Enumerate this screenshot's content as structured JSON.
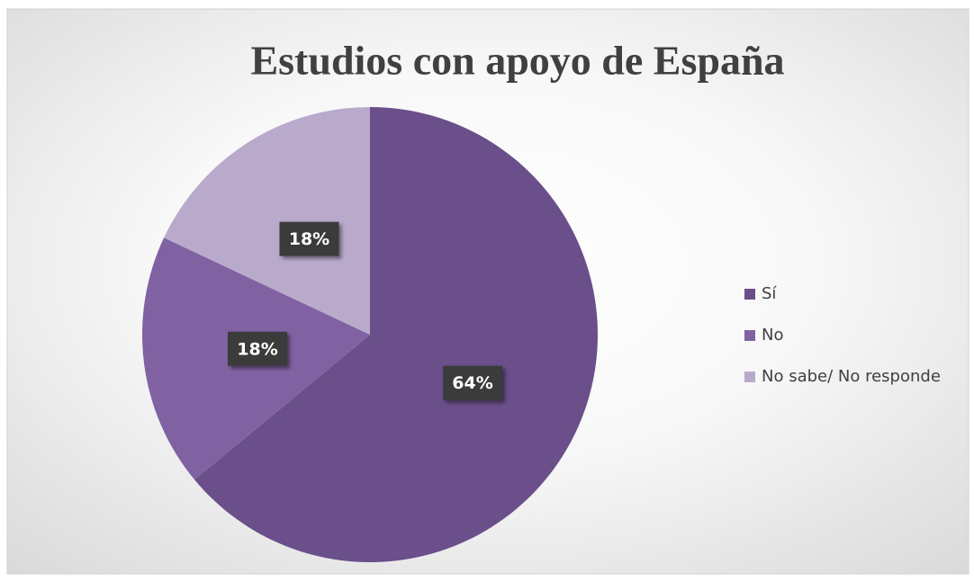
{
  "chart_data": {
    "type": "pie",
    "title": "Estudios con apoyo de España",
    "categories": [
      "Sí",
      "No",
      "No sabe/ No responde"
    ],
    "values": [
      64,
      18,
      18
    ],
    "value_labels": [
      "64%",
      "18%",
      "18%"
    ],
    "colors": [
      "#6a4f8a",
      "#8062a2",
      "#b9aacb"
    ],
    "legend": "right"
  }
}
